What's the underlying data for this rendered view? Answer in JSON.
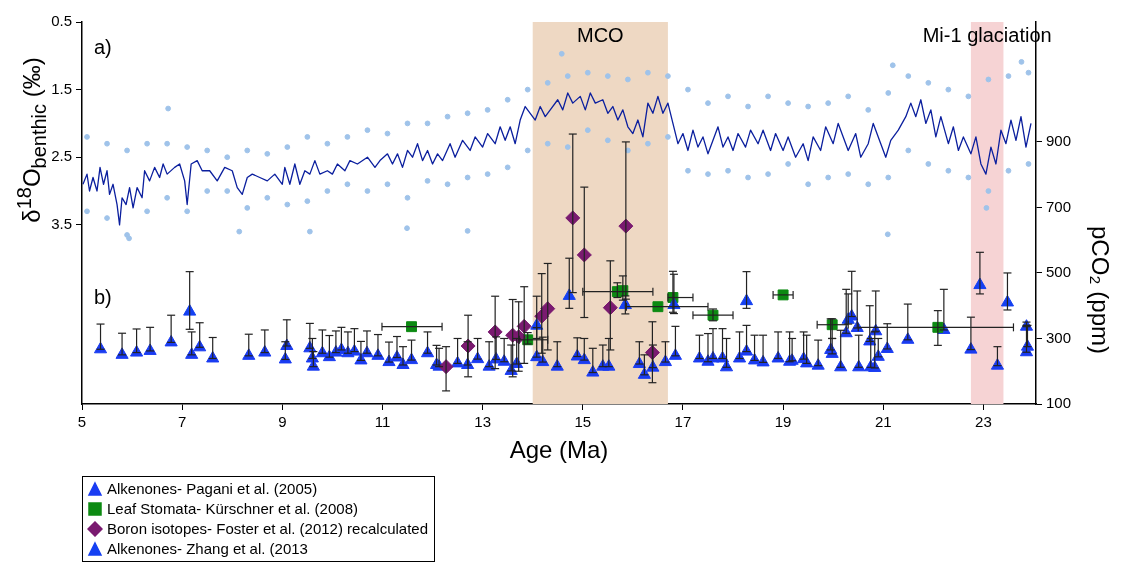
{
  "chart_data": {
    "type": "scatter",
    "xlabel": "Age (Ma)",
    "ylabel": "δ$^{18}$O$_{benthic}$ (‰)",
    "y2label": "pCO₂ (ppm)",
    "xlim": [
      5,
      24.05
    ],
    "xticks": [
      5,
      7,
      9,
      11,
      13,
      15,
      17,
      19,
      21,
      23
    ],
    "ylim": [
      6.15,
      0.5
    ],
    "yticks": [
      0.5,
      1.5,
      2.5,
      3.5
    ],
    "y2lim": [
      100,
      1266
    ],
    "y2ticks": [
      100,
      300,
      500,
      700,
      900
    ],
    "grid": false,
    "legend": "bottom left",
    "annotations": [
      "a)",
      "b)"
    ],
    "bands": [
      {
        "axis": "x",
        "from": 14,
        "to": 16.7,
        "label": "MCO",
        "color": "#eed8c3"
      },
      {
        "axis": "x",
        "from": 22.75,
        "to": 23.4,
        "label": "Mi-1 glaciation",
        "color": "#f6d3d4"
      }
    ],
    "series": [
      {
        "type": "scatter",
        "color": "#9fc3ea",
        "marker": "circle",
        "axis": "y",
        "x": [
          5.1,
          5.1,
          5.5,
          5.5,
          5.9,
          5.9,
          6.3,
          6.3,
          6.7,
          6.7,
          7.1,
          7.1,
          7.5,
          7.5,
          7.9,
          7.9,
          8.3,
          8.3,
          8.7,
          8.7,
          9.1,
          9.1,
          9.5,
          9.5,
          9.9,
          9.9,
          10.3,
          10.3,
          10.7,
          10.7,
          11.1,
          11.1,
          11.5,
          11.5,
          11.9,
          11.9,
          12.3,
          12.3,
          12.7,
          12.7,
          13.1,
          13.1,
          13.5,
          13.5,
          13.9,
          13.9,
          14.3,
          14.3,
          14.7,
          14.7,
          15.1,
          15.1,
          15.5,
          15.5,
          15.9,
          15.9,
          16.3,
          16.3,
          16.7,
          16.7,
          17.1,
          17.1,
          17.5,
          17.5,
          17.9,
          17.9,
          18.3,
          18.3,
          18.7,
          18.7,
          19.1,
          19.1,
          19.5,
          19.5,
          19.9,
          19.9,
          20.3,
          20.3,
          20.7,
          20.7,
          21.1,
          21.1,
          21.5,
          21.5,
          21.9,
          21.9,
          22.3,
          22.3,
          22.7,
          22.7,
          23.1,
          23.1,
          23.5,
          23.5,
          23.9,
          23.9,
          5.94,
          6.72,
          8.14,
          9.55,
          11.49,
          12.7,
          14.58,
          21.19,
          23.76,
          21.09,
          23.06
        ],
        "values": [
          2.2,
          3.3,
          2.3,
          3.4,
          2.4,
          3.65,
          2.3,
          3.3,
          2.3,
          3.1,
          2.35,
          3.3,
          2.4,
          3.0,
          2.5,
          3.0,
          2.4,
          3.25,
          2.45,
          3.1,
          2.35,
          3.2,
          2.2,
          3.15,
          2.3,
          3.0,
          2.2,
          2.9,
          2.1,
          3.0,
          2.15,
          2.9,
          2.0,
          3.1,
          2.0,
          2.85,
          1.9,
          2.9,
          1.85,
          2.8,
          1.8,
          2.75,
          1.65,
          2.65,
          1.5,
          2.4,
          1.4,
          2.3,
          1.3,
          2.35,
          1.25,
          2.1,
          1.3,
          2.25,
          1.35,
          2.4,
          1.25,
          2.3,
          1.3,
          2.2,
          1.5,
          2.7,
          1.7,
          2.75,
          1.6,
          2.7,
          1.75,
          2.8,
          1.6,
          2.75,
          1.7,
          2.6,
          1.75,
          2.9,
          1.7,
          2.8,
          1.6,
          2.75,
          1.8,
          2.9,
          1.55,
          2.8,
          1.3,
          2.4,
          1.4,
          2.6,
          1.5,
          2.7,
          1.6,
          2.8,
          1.35,
          3.0,
          1.3,
          2.7,
          1.25,
          2.6,
          3.7,
          1.78,
          3.6,
          3.6,
          3.55,
          3.59,
          0.97,
          1.14,
          1.09,
          3.64,
          3.25
        ]
      },
      {
        "type": "line",
        "color": "#0b1f9e",
        "marker": "none",
        "axis": "y",
        "x": [
          5.02,
          5.1,
          5.15,
          5.22,
          5.3,
          5.36,
          5.43,
          5.5,
          5.55,
          5.62,
          5.7,
          5.75,
          5.8,
          5.88,
          5.95,
          6.02,
          6.1,
          6.2,
          6.25,
          6.35,
          6.45,
          6.55,
          6.62,
          6.7,
          6.85,
          6.95,
          7.05,
          7.1,
          7.18,
          7.3,
          7.4,
          7.55,
          7.7,
          7.85,
          8.0,
          8.1,
          8.2,
          8.3,
          8.4,
          8.55,
          8.7,
          8.85,
          9.0,
          9.05,
          9.15,
          9.25,
          9.35,
          9.45,
          9.55,
          9.65,
          9.75,
          9.9,
          10.0,
          10.1,
          10.25,
          10.35,
          10.5,
          10.7,
          10.85,
          10.95,
          11.1,
          11.2,
          11.3,
          11.4,
          11.5,
          11.6,
          11.7,
          11.8,
          11.9,
          12.0,
          12.1,
          12.2,
          12.35,
          12.45,
          12.6,
          12.75,
          12.85,
          13.0,
          13.1,
          13.25,
          13.35,
          13.45,
          13.55,
          13.65,
          13.75,
          13.85,
          13.95,
          14.05,
          14.15,
          14.25,
          14.35,
          14.5,
          14.6,
          14.7,
          14.8,
          14.95,
          15.05,
          15.15,
          15.25,
          15.4,
          15.5,
          15.6,
          15.7,
          15.8,
          15.9,
          16.0,
          16.1,
          16.2,
          16.3,
          16.4,
          16.5,
          16.6,
          16.7,
          16.8,
          16.9,
          17.0,
          17.1,
          17.2,
          17.3,
          17.4,
          17.5,
          17.6,
          17.7,
          17.8,
          17.9,
          18.0,
          18.1,
          18.25,
          18.35,
          18.5,
          18.6,
          18.75,
          18.85,
          19.0,
          19.1,
          19.25,
          19.4,
          19.5,
          19.6,
          19.75,
          19.85,
          20.0,
          20.1,
          20.2,
          20.3,
          20.45,
          20.55,
          20.7,
          20.8,
          20.95,
          21.05,
          21.15,
          21.3,
          21.45,
          21.55,
          21.65,
          21.75,
          21.85,
          21.95,
          22.05,
          22.15,
          22.3,
          22.4,
          22.5,
          22.6,
          22.75,
          22.85,
          22.95,
          23.05,
          23.15,
          23.25,
          23.35,
          23.45,
          23.55,
          23.65,
          23.75,
          23.85,
          23.95
        ],
        "values": [
          2.9,
          2.75,
          3.0,
          2.8,
          3.0,
          2.65,
          2.9,
          2.7,
          3.05,
          2.9,
          3.2,
          3.5,
          3.1,
          3.2,
          2.95,
          3.25,
          2.95,
          3.1,
          2.7,
          2.85,
          2.65,
          2.8,
          2.6,
          2.75,
          2.65,
          2.6,
          2.85,
          3.2,
          2.6,
          2.55,
          2.7,
          2.7,
          2.85,
          2.65,
          2.7,
          2.95,
          3.05,
          2.8,
          2.75,
          2.8,
          2.85,
          2.75,
          2.9,
          2.65,
          2.9,
          2.6,
          2.9,
          2.7,
          2.75,
          2.55,
          2.75,
          2.7,
          2.75,
          2.6,
          2.7,
          2.55,
          2.6,
          2.5,
          2.65,
          2.55,
          2.45,
          2.6,
          2.45,
          2.65,
          2.4,
          2.5,
          2.3,
          2.55,
          2.4,
          2.6,
          2.45,
          2.55,
          2.3,
          2.5,
          2.25,
          2.4,
          2.2,
          2.35,
          2.15,
          2.3,
          2.05,
          2.25,
          2.05,
          2.3,
          1.95,
          1.75,
          1.85,
          1.95,
          1.75,
          1.9,
          1.8,
          1.65,
          1.8,
          1.55,
          1.7,
          1.6,
          1.8,
          1.55,
          1.7,
          1.65,
          1.85,
          1.75,
          1.95,
          1.8,
          2.05,
          2.15,
          1.95,
          2.2,
          1.7,
          1.85,
          1.6,
          1.85,
          1.7,
          2.0,
          2.3,
          2.15,
          2.4,
          2.1,
          2.35,
          2.2,
          2.45,
          2.25,
          2.05,
          2.35,
          2.2,
          2.4,
          2.15,
          2.35,
          2.1,
          2.3,
          2.1,
          2.4,
          2.15,
          2.4,
          2.2,
          2.5,
          2.3,
          2.55,
          2.2,
          2.4,
          2.05,
          2.3,
          2.0,
          2.2,
          2.4,
          2.15,
          2.5,
          2.3,
          2.0,
          2.3,
          2.5,
          2.25,
          2.1,
          1.9,
          1.7,
          1.9,
          1.65,
          2.0,
          1.8,
          2.2,
          1.9,
          2.3,
          2.05,
          2.4,
          2.2,
          2.45,
          2.2,
          2.6,
          2.75,
          2.35,
          2.6,
          2.1,
          2.3,
          1.95,
          2.25,
          1.9,
          2.35,
          2.0
        ]
      },
      {
        "type": "scatter",
        "name": "Alkenones- Pagani et al. (2005)",
        "color": "#1a3cf2",
        "marker": "triangle",
        "axis": "y2",
        "x": [
          5.37,
          5.8,
          6.09,
          6.36,
          6.78,
          7.19,
          7.35,
          7.61,
          8.33,
          8.65,
          9.06,
          9.09,
          9.55,
          9.6,
          9.62,
          9.8,
          9.94,
          10.07,
          10.18,
          10.31,
          10.44,
          10.57,
          10.69,
          10.91,
          11.13,
          11.29,
          11.41,
          11.58,
          11.9,
          12.08,
          12.13,
          12.5,
          12.7,
          12.9,
          13.13,
          13.27,
          13.43,
          13.57,
          13.68,
          14.08,
          14.2,
          14.49,
          14.89,
          15.03,
          15.2,
          15.4,
          15.52,
          16.13,
          16.23,
          16.4,
          16.65,
          16.85,
          17.33,
          17.5,
          17.6,
          17.79,
          17.87,
          18.13,
          18.27,
          18.43,
          18.6,
          18.9,
          19.13,
          19.18,
          19.41,
          19.47,
          19.7,
          19.95,
          19.98,
          20.15,
          20.26,
          20.37,
          20.48,
          20.51,
          20.73,
          20.75,
          20.83,
          20.85,
          20.9,
          21.08,
          21.49,
          22.21,
          22.75,
          23.28,
          23.86,
          23.86,
          23.88
        ],
        "values": [
          267,
          250,
          257,
          262,
          288,
          250,
          273,
          239,
          247,
          257,
          236,
          277,
          270,
          239,
          214,
          255,
          243,
          257,
          265,
          255,
          260,
          233,
          255,
          247,
          228,
          242,
          219,
          234,
          255,
          219,
          214,
          224,
          219,
          237,
          214,
          236,
          229,
          201,
          222,
          243,
          228,
          214,
          245,
          234,
          196,
          214,
          214,
          222,
          189,
          211,
          228,
          247,
          239,
          229,
          239,
          239,
          212,
          239,
          260,
          233,
          227,
          239,
          229,
          232,
          237,
          224,
          217,
          265,
          253,
          212,
          316,
          367,
          332,
          212,
          291,
          212,
          210,
          322,
          244,
          268,
          296,
          326,
          266,
          217,
          258,
          336,
          275
        ],
        "errors": [
          [
            267,
            344
          ],
          [
            250,
            316
          ],
          [
            257,
            329
          ],
          [
            262,
            334
          ],
          [
            288,
            371
          ],
          [
            250,
            320
          ],
          [
            273,
            348
          ],
          [
            239,
            303
          ],
          [
            247,
            313
          ],
          [
            257,
            326
          ],
          [
            236,
            290
          ],
          [
            277,
            357
          ],
          [
            270,
            346
          ],
          [
            239,
            300
          ],
          [
            214,
            260
          ],
          [
            255,
            326
          ],
          [
            243,
            309
          ],
          [
            257,
            323
          ],
          [
            265,
            334
          ],
          [
            255,
            320
          ],
          [
            260,
            330
          ],
          [
            233,
            291
          ],
          [
            255,
            323
          ],
          [
            247,
            312
          ],
          [
            228,
            289
          ],
          [
            242,
            306
          ],
          [
            219,
            275
          ],
          [
            234,
            295
          ],
          [
            255,
            320
          ],
          [
            219,
            279
          ],
          [
            214,
            270
          ],
          [
            224,
            300
          ],
          [
            219,
            290
          ],
          [
            237,
            300
          ],
          [
            214,
            290
          ],
          [
            236,
            305
          ],
          [
            229,
            300
          ],
          [
            201,
            280
          ],
          [
            222,
            300
          ],
          [
            243,
            333
          ],
          [
            228,
            304
          ],
          [
            214,
            290
          ],
          [
            245,
            302
          ],
          [
            234,
            300
          ],
          [
            196,
            270
          ],
          [
            214,
            280
          ],
          [
            214,
            300
          ],
          [
            222,
            290
          ],
          [
            189,
            250
          ],
          [
            211,
            280
          ],
          [
            228,
            290
          ],
          [
            247,
            337
          ],
          [
            239,
            310
          ],
          [
            229,
            315
          ],
          [
            239,
            330
          ],
          [
            239,
            330
          ],
          [
            212,
            300
          ],
          [
            239,
            320
          ],
          [
            260,
            340
          ],
          [
            233,
            310
          ],
          [
            227,
            310
          ],
          [
            239,
            320
          ],
          [
            229,
            320
          ],
          [
            232,
            300
          ],
          [
            237,
            320
          ],
          [
            224,
            310
          ],
          [
            217,
            295
          ],
          [
            265,
            360
          ],
          [
            253,
            300
          ],
          [
            212,
            325
          ],
          [
            316,
            450
          ],
          [
            367,
            505
          ],
          [
            332,
            445
          ],
          [
            212,
            310
          ],
          [
            291,
            400
          ],
          [
            212,
            300
          ],
          [
            210,
            320
          ],
          [
            322,
            445
          ],
          [
            244,
            300
          ],
          [
            268,
            345
          ],
          [
            296,
            405
          ],
          [
            326,
            450
          ],
          [
            266,
            365
          ],
          [
            217,
            275
          ],
          [
            258,
            340
          ],
          [
            336,
            350
          ],
          [
            275,
            340
          ]
        ]
      },
      {
        "type": "scatter",
        "name": "Leaf Stomata- Kürschner et al. (2008)",
        "color": "#0c8a12",
        "marker": "square",
        "axis": "y2",
        "x": [
          11.58,
          13.9,
          15.69,
          15.8,
          16.5,
          16.8,
          17.6,
          19.0,
          19.98,
          22.09
        ],
        "values": [
          336,
          296,
          443,
          446,
          397,
          425,
          371,
          433,
          342,
          334
        ],
        "errors": [
          null,
          [
            283,
            318
          ],
          [
            425,
            470
          ],
          [
            417,
            491
          ],
          null,
          [
            380,
            505
          ],
          [
            354,
            390
          ],
          null,
          [
            300,
            360
          ],
          [
            279,
            385
          ]
        ],
        "xerrors": [
          [
            10.99,
            12.19
          ],
          [
            13.73,
            14.3
          ],
          [
            15.0,
            16.4
          ],
          null,
          [
            15.87,
            17.5
          ],
          [
            16.7,
            17.2
          ],
          [
            17.2,
            18.0
          ],
          [
            18.8,
            19.2
          ],
          [
            19.68,
            20.3
          ],
          [
            20.5,
            23.6
          ]
        ]
      },
      {
        "type": "scatter",
        "name": "Boron isotopes- Foster et al. (2012) recalculated",
        "color": "#7a1a70",
        "marker": "diamond",
        "axis": "y2",
        "x": [
          12.27,
          12.71,
          13.25,
          13.6,
          13.72,
          13.83,
          14.18,
          14.3,
          14.8,
          15.03,
          15.55,
          15.86,
          16.39
        ],
        "values": [
          214,
          277,
          320,
          310,
          305,
          337,
          368,
          391,
          668,
          555,
          394,
          643,
          257
        ],
        "errors": [
          [
            140,
            275
          ],
          [
            183,
            371
          ],
          [
            208,
            429
          ],
          [
            183,
            419
          ],
          [
            200,
            412
          ],
          [
            224,
            458
          ],
          [
            255,
            498
          ],
          [
            265,
            529
          ],
          [
            440,
            924
          ],
          [
            364,
            762
          ],
          [
            265,
            537
          ],
          [
            420,
            900
          ],
          [
            165,
            351
          ]
        ]
      },
      {
        "type": "scatter",
        "name": "Alkenones- Zhang et al. (2013",
        "color": "#1440f2",
        "marker": "triangle",
        "axis": "y2",
        "x": [
          7.15,
          14.08,
          14.73,
          15.85,
          16.82,
          18.27,
          20.3,
          22.93,
          23.48
        ],
        "values": [
          382,
          339,
          430,
          402,
          402,
          414,
          357,
          463,
          410
        ],
        "errors": [
          [
            328,
            504
          ],
          [
            300,
            429
          ],
          [
            392,
            545
          ],
          [
            375,
            430
          ],
          [
            376,
            496
          ],
          [
            392,
            504
          ],
          [
            344,
            436
          ],
          [
            436,
            563
          ],
          [
            387,
            500
          ]
        ]
      }
    ]
  }
}
